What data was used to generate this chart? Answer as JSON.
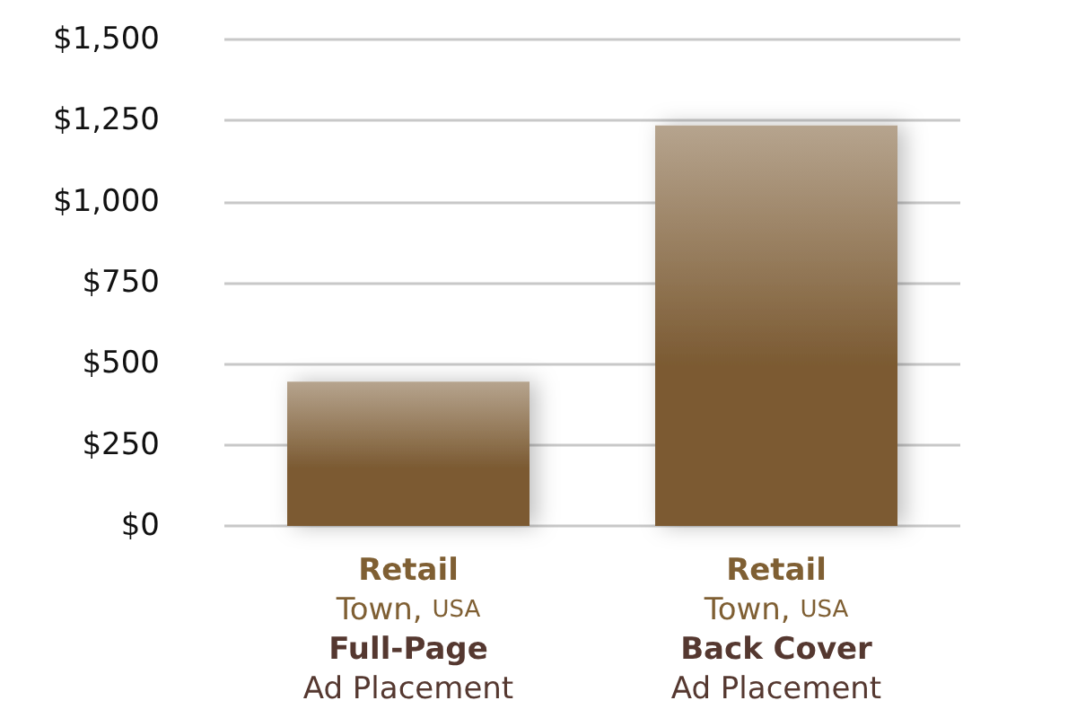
{
  "chart_data": {
    "type": "bar",
    "categories": [
      "Retail\nTown, USA\nFull-Page\nAd Placement",
      "Retail\nTown, USA\nBack Cover\nAd Placement"
    ],
    "values": [
      445,
      1235
    ],
    "color": "#7b5a32",
    "ylim": [
      0,
      1500
    ],
    "yticks": [
      {
        "value": 0,
        "label": "$0"
      },
      {
        "value": 250,
        "label": "$250"
      },
      {
        "value": 500,
        "label": "$500"
      },
      {
        "value": 750,
        "label": "$750"
      },
      {
        "value": 1000,
        "label": "$1,000"
      },
      {
        "value": 1250,
        "label": "$1,250"
      },
      {
        "value": 1500,
        "label": "$1,500"
      }
    ],
    "grid": "y"
  }
}
